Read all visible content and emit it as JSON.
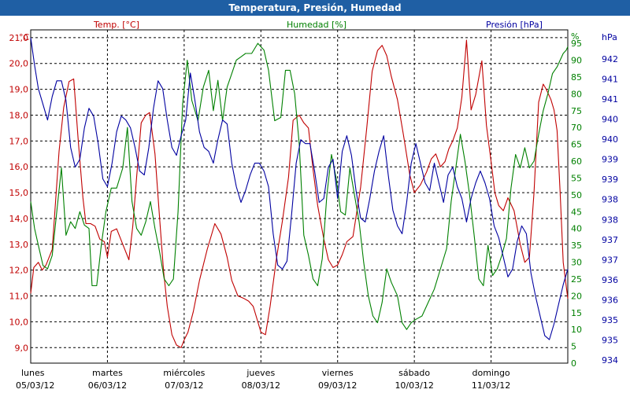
{
  "chart_data": {
    "type": "line",
    "title": "Temperatura, Presión, Humedad",
    "x": {
      "days": [
        {
          "weekday": "lunes",
          "date": "05/03/12"
        },
        {
          "weekday": "martes",
          "date": "06/03/12"
        },
        {
          "weekday": "miércoles",
          "date": "07/03/12"
        },
        {
          "weekday": "jueves",
          "date": "08/03/12"
        },
        {
          "weekday": "viernes",
          "date": "09/03/12"
        },
        {
          "weekday": "sábado",
          "date": "10/03/12"
        },
        {
          "weekday": "domingo",
          "date": "11/03/12"
        }
      ],
      "range_days": [
        0,
        7
      ]
    },
    "axes": {
      "temperature": {
        "unit_label": "°C",
        "series_label": "Temp. [°C]",
        "color": "#c00000",
        "range": [
          8.4,
          21.3
        ],
        "ticks": [
          "9,0",
          "10,0",
          "11,0",
          "12,0",
          "13,0",
          "14,0",
          "15,0",
          "16,0",
          "17,0",
          "18,0",
          "19,0",
          "20,0",
          "21,0"
        ]
      },
      "humidity": {
        "unit_label": "%",
        "series_label": "Humedad [%]",
        "color": "#008000",
        "range": [
          0,
          99
        ],
        "ticks": [
          "0",
          "5",
          "10",
          "15",
          "20",
          "25",
          "30",
          "35",
          "40",
          "45",
          "50",
          "55",
          "60",
          "65",
          "70",
          "75",
          "80",
          "85",
          "90",
          "95"
        ]
      },
      "pressure": {
        "unit_label": "hPa",
        "series_label": "Presión [hPa]",
        "color": "#0000a0",
        "range": [
          933.8,
          942.3
        ],
        "ticks": [
          "934",
          "935",
          "935",
          "936",
          "936",
          "937",
          "937",
          "938",
          "938",
          "939",
          "939",
          "940",
          "940",
          "941",
          "941",
          "942"
        ]
      }
    },
    "grid": true,
    "series": [
      {
        "name": "Temp. [°C]",
        "axis": "temperature",
        "x": [
          0.0,
          0.04,
          0.1,
          0.15,
          0.2,
          0.28,
          0.32,
          0.37,
          0.43,
          0.5,
          0.56,
          0.62,
          0.68,
          0.72,
          0.78,
          0.84,
          0.9,
          0.96,
          1.0,
          1.05,
          1.12,
          1.2,
          1.28,
          1.33,
          1.38,
          1.44,
          1.5,
          1.55,
          1.62,
          1.68,
          1.73,
          1.78,
          1.84,
          1.9,
          1.96,
          2.0,
          2.05,
          2.12,
          2.2,
          2.3,
          2.4,
          2.48,
          2.56,
          2.62,
          2.7,
          2.78,
          2.84,
          2.9,
          2.96,
          3.0,
          3.06,
          3.12,
          3.2,
          3.28,
          3.36,
          3.42,
          3.5,
          3.56,
          3.62,
          3.68,
          3.74,
          3.82,
          3.88,
          3.94,
          4.0,
          4.06,
          4.12,
          4.2,
          4.3,
          4.38,
          4.45,
          4.52,
          4.58,
          4.64,
          4.7,
          4.78,
          4.86,
          4.94,
          5.0,
          5.08,
          5.16,
          5.22,
          5.28,
          5.34,
          5.4,
          5.45,
          5.5,
          5.56,
          5.62,
          5.68,
          5.74,
          5.8,
          5.88,
          5.94,
          6.0,
          6.05,
          6.1,
          6.16,
          6.22,
          6.3,
          6.38,
          6.44,
          6.5,
          6.56,
          6.62,
          6.68,
          6.72,
          6.78,
          6.82,
          6.86,
          6.9,
          6.94,
          7.0
        ],
        "values": [
          11.1,
          12.1,
          12.3,
          12.0,
          12.2,
          12.8,
          14.5,
          16.6,
          18.3,
          19.3,
          19.4,
          17.0,
          14.8,
          13.8,
          13.8,
          13.7,
          13.2,
          13.1,
          12.5,
          13.5,
          13.6,
          13.0,
          12.4,
          13.7,
          15.6,
          17.7,
          18.0,
          18.1,
          16.5,
          14.0,
          12.0,
          10.6,
          9.5,
          9.1,
          9.0,
          9.3,
          9.6,
          10.4,
          11.6,
          12.8,
          13.8,
          13.4,
          12.5,
          11.6,
          11.0,
          10.9,
          10.8,
          10.6,
          10.0,
          9.6,
          9.5,
          10.6,
          12.4,
          13.9,
          15.6,
          17.8,
          18.0,
          17.7,
          17.5,
          15.9,
          14.5,
          13.2,
          12.4,
          12.1,
          12.2,
          12.6,
          13.1,
          13.3,
          15.2,
          17.5,
          19.7,
          20.5,
          20.7,
          20.3,
          19.5,
          18.6,
          17.2,
          15.7,
          15.0,
          15.3,
          15.8,
          16.3,
          16.5,
          16.0,
          16.2,
          16.7,
          17.0,
          17.5,
          18.7,
          20.9,
          18.2,
          18.8,
          20.1,
          17.6,
          16.2,
          15.0,
          14.5,
          14.3,
          14.8,
          14.3,
          13.0,
          12.3,
          12.5,
          15.0,
          18.5,
          19.2,
          19.0,
          18.6,
          18.2,
          17.4,
          15.0,
          12.3,
          10.9
        ]
      },
      {
        "name": "Humedad [%]",
        "axis": "humidity",
        "x": [
          0.0,
          0.05,
          0.1,
          0.16,
          0.22,
          0.28,
          0.34,
          0.4,
          0.46,
          0.52,
          0.58,
          0.64,
          0.7,
          0.76,
          0.8,
          0.86,
          0.92,
          0.98,
          1.05,
          1.12,
          1.2,
          1.26,
          1.32,
          1.38,
          1.44,
          1.5,
          1.56,
          1.62,
          1.68,
          1.74,
          1.8,
          1.86,
          1.92,
          1.98,
          2.04,
          2.1,
          2.18,
          2.25,
          2.32,
          2.38,
          2.44,
          2.5,
          2.56,
          2.62,
          2.68,
          2.74,
          2.8,
          2.88,
          2.96,
          3.04,
          3.1,
          3.18,
          3.26,
          3.32,
          3.38,
          3.44,
          3.5,
          3.56,
          3.62,
          3.68,
          3.74,
          3.8,
          3.86,
          3.92,
          3.98,
          4.04,
          4.1,
          4.16,
          4.22,
          4.28,
          4.34,
          4.4,
          4.46,
          4.52,
          4.58,
          4.64,
          4.7,
          4.78,
          4.84,
          4.9,
          4.96,
          5.02,
          5.1,
          5.18,
          5.26,
          5.34,
          5.42,
          5.48,
          5.54,
          5.6,
          5.66,
          5.72,
          5.78,
          5.84,
          5.9,
          5.96,
          6.02,
          6.08,
          6.14,
          6.2,
          6.26,
          6.32,
          6.38,
          6.44,
          6.5,
          6.56,
          6.62,
          6.68,
          6.74,
          6.8,
          6.86,
          6.9,
          6.94,
          6.98,
          7.0
        ],
        "values": [
          48,
          40,
          35,
          29,
          28,
          32,
          45,
          58,
          38,
          42,
          40,
          45,
          41,
          40,
          23,
          23,
          35,
          45,
          52,
          52,
          58,
          70,
          48,
          40,
          38,
          42,
          48,
          40,
          33,
          25,
          23,
          25,
          45,
          77,
          90,
          78,
          72,
          82,
          87,
          75,
          84,
          72,
          82,
          86,
          90,
          91,
          92,
          92,
          95,
          93,
          87,
          72,
          73,
          87,
          87,
          80,
          65,
          38,
          32,
          25,
          23,
          31,
          50,
          62,
          55,
          45,
          44,
          58,
          50,
          42,
          30,
          20,
          14,
          12,
          18,
          28,
          24,
          20,
          12,
          10,
          12,
          13,
          14,
          18,
          22,
          28,
          34,
          48,
          58,
          68,
          60,
          50,
          38,
          25,
          23,
          35,
          26,
          28,
          32,
          37,
          52,
          62,
          58,
          64,
          58,
          60,
          68,
          75,
          80,
          86,
          88,
          90,
          92,
          93,
          94
        ]
      },
      {
        "name": "Presión [hPa]",
        "axis": "pressure",
        "x": [
          0.0,
          0.05,
          0.1,
          0.16,
          0.22,
          0.28,
          0.34,
          0.4,
          0.46,
          0.52,
          0.58,
          0.64,
          0.7,
          0.76,
          0.82,
          0.88,
          0.94,
          1.0,
          1.06,
          1.12,
          1.18,
          1.24,
          1.3,
          1.36,
          1.42,
          1.48,
          1.54,
          1.6,
          1.66,
          1.72,
          1.78,
          1.84,
          1.9,
          1.96,
          2.02,
          2.08,
          2.14,
          2.2,
          2.26,
          2.32,
          2.38,
          2.44,
          2.5,
          2.56,
          2.62,
          2.68,
          2.74,
          2.8,
          2.86,
          2.92,
          2.98,
          3.04,
          3.1,
          3.16,
          3.22,
          3.28,
          3.34,
          3.4,
          3.46,
          3.52,
          3.58,
          3.64,
          3.7,
          3.76,
          3.82,
          3.88,
          3.94,
          4.0,
          4.06,
          4.12,
          4.18,
          4.24,
          4.3,
          4.36,
          4.42,
          4.48,
          4.54,
          4.6,
          4.66,
          4.72,
          4.78,
          4.84,
          4.9,
          4.96,
          5.02,
          5.08,
          5.14,
          5.2,
          5.26,
          5.32,
          5.38,
          5.44,
          5.5,
          5.56,
          5.62,
          5.68,
          5.74,
          5.8,
          5.86,
          5.92,
          5.98,
          6.04,
          6.1,
          6.16,
          6.22,
          6.28,
          6.34,
          6.4,
          6.46,
          6.52,
          6.58,
          6.64,
          6.7,
          6.76,
          6.82,
          6.88,
          6.94,
          7.0
        ],
        "values": [
          942.1,
          941.4,
          940.8,
          940.4,
          940.0,
          940.6,
          941.0,
          941.0,
          940.5,
          939.3,
          938.8,
          939.0,
          939.8,
          940.3,
          940.1,
          939.4,
          938.5,
          938.3,
          938.9,
          939.7,
          940.1,
          940.0,
          939.8,
          939.3,
          938.7,
          938.6,
          939.3,
          940.3,
          941.0,
          940.8,
          940.0,
          939.3,
          939.1,
          939.6,
          940.0,
          941.2,
          940.5,
          939.7,
          939.3,
          939.2,
          938.9,
          939.5,
          940.0,
          939.9,
          938.9,
          938.3,
          937.9,
          938.2,
          938.6,
          938.9,
          938.9,
          938.7,
          938.3,
          937.1,
          936.3,
          936.2,
          936.4,
          937.6,
          938.9,
          939.5,
          939.4,
          939.4,
          938.7,
          937.9,
          938.0,
          938.8,
          939.0,
          938.0,
          939.2,
          939.6,
          939.1,
          938.2,
          937.5,
          937.4,
          938.0,
          938.7,
          939.2,
          939.6,
          938.6,
          937.7,
          937.3,
          937.1,
          937.9,
          938.9,
          939.4,
          938.9,
          938.4,
          938.2,
          938.9,
          938.4,
          937.9,
          938.6,
          938.8,
          938.3,
          938.0,
          937.4,
          938.0,
          938.4,
          938.7,
          938.4,
          938.0,
          937.3,
          937.0,
          936.5,
          936.0,
          936.2,
          936.9,
          937.3,
          937.1,
          936.1,
          935.5,
          935.0,
          934.5,
          934.4,
          934.8,
          935.3,
          935.8,
          936.2
        ]
      }
    ]
  }
}
